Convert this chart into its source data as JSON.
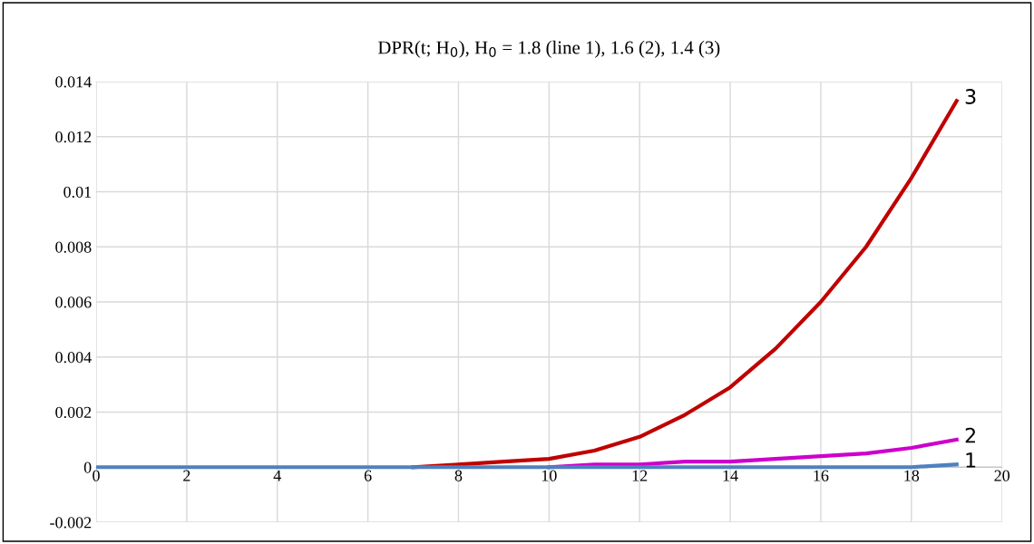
{
  "chart_data": {
    "type": "line",
    "title": "DPR(t; H$_{0}$), H$_{0}$ = 1.8 (line 1), 1.6 (2), 1.4 (3)",
    "x": [
      0,
      1,
      2,
      3,
      4,
      5,
      6,
      7,
      8,
      9,
      10,
      11,
      12,
      13,
      14,
      15,
      16,
      17,
      18,
      19
    ],
    "series": [
      {
        "name": "1",
        "color": "#4f81bd",
        "values": [
          0,
          0,
          0,
          0,
          0,
          0,
          0,
          0,
          0,
          0,
          0,
          0,
          0,
          0,
          0,
          0,
          0,
          0,
          0,
          0.0001
        ]
      },
      {
        "name": "2",
        "color": "#cc00cc",
        "values": [
          null,
          null,
          null,
          null,
          null,
          null,
          null,
          null,
          null,
          null,
          0,
          0.0001,
          0.0001,
          0.0002,
          0.0002,
          0.0003,
          0.0004,
          0.0005,
          0.0007,
          0.001
        ]
      },
      {
        "name": "3",
        "color": "#c00000",
        "values": [
          null,
          null,
          null,
          null,
          null,
          null,
          null,
          0,
          0.0001,
          0.0002,
          0.0003,
          0.0006,
          0.0011,
          0.0019,
          0.0029,
          0.0043,
          0.006,
          0.008,
          0.0105,
          0.0133
        ]
      }
    ],
    "xlim": [
      0,
      20
    ],
    "xticks": [
      0,
      2,
      4,
      6,
      8,
      10,
      12,
      14,
      16,
      18,
      20
    ],
    "ylim": [
      -0.002,
      0.014
    ],
    "yticks": [
      -0.002,
      0,
      0.002,
      0.004,
      0.006,
      0.008,
      0.01,
      0.012,
      0.014
    ],
    "grid": true,
    "line_style": "solid",
    "marker": "none"
  }
}
